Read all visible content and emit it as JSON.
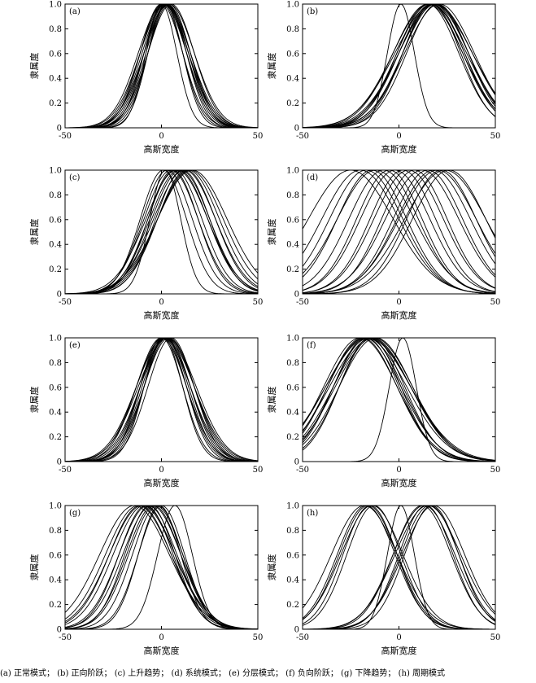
{
  "caption": [
    "(a) 正常模式；",
    "(b) 正向阶跃；",
    "(c) 上升趋势；",
    "(d) 系统模式；",
    "(e) 分层模式；",
    "(f) 负向阶跃；",
    "(g) 下降趋势；",
    "(h) 周期模式"
  ],
  "colors": {
    "line": "#000000",
    "axis": "#000000",
    "background": "#ffffff"
  },
  "chart_data": [
    {
      "type": "line",
      "panel": "(a)",
      "xlabel": "高斯宽度",
      "ylabel": "隶属度",
      "xlim": [
        -50,
        50
      ],
      "ylim": [
        0,
        1
      ],
      "xticks": [
        "-50",
        "0",
        "50"
      ],
      "yticks": [
        "0",
        "0.2",
        "0.4",
        "0.6",
        "0.8",
        "1.0"
      ],
      "series": [
        {
          "center": 0,
          "sigma": 8
        },
        {
          "center": 1,
          "sigma": 10
        },
        {
          "center": 2,
          "sigma": 11
        },
        {
          "center": 3,
          "sigma": 12
        },
        {
          "center": 1,
          "sigma": 12
        },
        {
          "center": 4,
          "sigma": 11
        },
        {
          "center": 2,
          "sigma": 13
        },
        {
          "center": 0,
          "sigma": 11
        },
        {
          "center": 3,
          "sigma": 10
        },
        {
          "center": 5,
          "sigma": 12
        },
        {
          "center": 1,
          "sigma": 13
        },
        {
          "center": 2,
          "sigma": 9
        },
        {
          "center": 4,
          "sigma": 13
        },
        {
          "center": 3,
          "sigma": 11
        },
        {
          "center": 2,
          "sigma": 12
        }
      ]
    },
    {
      "type": "line",
      "panel": "(b)",
      "xlabel": "高斯宽度",
      "ylabel": "隶属度",
      "xlim": [
        -50,
        50
      ],
      "ylim": [
        0,
        1
      ],
      "xticks": [
        "-50",
        "0",
        "50"
      ],
      "yticks": [
        "0",
        "0.2",
        "0.4",
        "0.6",
        "0.8",
        "1.0"
      ],
      "series": [
        {
          "center": 1,
          "sigma": 7
        },
        {
          "center": 15,
          "sigma": 16
        },
        {
          "center": 17,
          "sigma": 17
        },
        {
          "center": 18,
          "sigma": 18
        },
        {
          "center": 16,
          "sigma": 19
        },
        {
          "center": 19,
          "sigma": 17
        },
        {
          "center": 20,
          "sigma": 16
        },
        {
          "center": 15,
          "sigma": 18
        },
        {
          "center": 18,
          "sigma": 20
        },
        {
          "center": 17,
          "sigma": 15
        },
        {
          "center": 21,
          "sigma": 18
        },
        {
          "center": 16,
          "sigma": 17
        },
        {
          "center": 19,
          "sigma": 19
        },
        {
          "center": 18,
          "sigma": 16
        }
      ]
    },
    {
      "type": "line",
      "panel": "(c)",
      "xlabel": "高斯宽度",
      "ylabel": "隶属度",
      "xlim": [
        -50,
        50
      ],
      "ylim": [
        0,
        1
      ],
      "xticks": [
        "-50",
        "0",
        "50"
      ],
      "yticks": [
        "0",
        "0.2",
        "0.4",
        "0.6",
        "0.8",
        "1.0"
      ],
      "series": [
        {
          "center": 2,
          "sigma": 8
        },
        {
          "center": 1,
          "sigma": 12
        },
        {
          "center": 3,
          "sigma": 13
        },
        {
          "center": 5,
          "sigma": 14
        },
        {
          "center": 7,
          "sigma": 14
        },
        {
          "center": 9,
          "sigma": 15
        },
        {
          "center": 10,
          "sigma": 15
        },
        {
          "center": 12,
          "sigma": 16
        },
        {
          "center": 14,
          "sigma": 16
        },
        {
          "center": 15,
          "sigma": 17
        },
        {
          "center": 11,
          "sigma": 14
        },
        {
          "center": 8,
          "sigma": 16
        },
        {
          "center": 13,
          "sigma": 15
        },
        {
          "center": 6,
          "sigma": 13
        },
        {
          "center": 16,
          "sigma": 18
        }
      ]
    },
    {
      "type": "line",
      "panel": "(d)",
      "xlabel": "高斯宽度",
      "ylabel": "隶属度",
      "xlim": [
        -50,
        50
      ],
      "ylim": [
        0,
        1
      ],
      "xticks": [
        "-50",
        "0",
        "50"
      ],
      "yticks": [
        "0",
        "0.2",
        "0.4",
        "0.6",
        "0.8",
        "1.0"
      ],
      "series": [
        {
          "center": -25,
          "sigma": 22
        },
        {
          "center": -20,
          "sigma": 20
        },
        {
          "center": -17,
          "sigma": 19
        },
        {
          "center": -14,
          "sigma": 18
        },
        {
          "center": -12,
          "sigma": 20
        },
        {
          "center": -8,
          "sigma": 18
        },
        {
          "center": -5,
          "sigma": 17
        },
        {
          "center": -2,
          "sigma": 18
        },
        {
          "center": 2,
          "sigma": 17
        },
        {
          "center": 5,
          "sigma": 18
        },
        {
          "center": 8,
          "sigma": 17
        },
        {
          "center": 12,
          "sigma": 19
        },
        {
          "center": 15,
          "sigma": 18
        },
        {
          "center": 18,
          "sigma": 19
        },
        {
          "center": 20,
          "sigma": 20
        },
        {
          "center": 22,
          "sigma": 18
        },
        {
          "center": 24,
          "sigma": 21
        },
        {
          "center": 26,
          "sigma": 19
        }
      ]
    },
    {
      "type": "line",
      "panel": "(e)",
      "xlabel": "高斯宽度",
      "ylabel": "隶属度",
      "xlim": [
        -50,
        50
      ],
      "ylim": [
        0,
        1
      ],
      "xticks": [
        "-50",
        "0",
        "50"
      ],
      "yticks": [
        "0",
        "0.2",
        "0.4",
        "0.6",
        "0.8",
        "1.0"
      ],
      "series": [
        {
          "center": 0,
          "sigma": 11
        },
        {
          "center": 1,
          "sigma": 12
        },
        {
          "center": 2,
          "sigma": 13
        },
        {
          "center": 3,
          "sigma": 12
        },
        {
          "center": 1,
          "sigma": 14
        },
        {
          "center": 2,
          "sigma": 11
        },
        {
          "center": 4,
          "sigma": 13
        },
        {
          "center": 0,
          "sigma": 13
        },
        {
          "center": 3,
          "sigma": 14
        },
        {
          "center": 2,
          "sigma": 15
        },
        {
          "center": 1,
          "sigma": 10
        },
        {
          "center": 5,
          "sigma": 12
        },
        {
          "center": 3,
          "sigma": 15
        },
        {
          "center": 2,
          "sigma": 12
        }
      ]
    },
    {
      "type": "line",
      "panel": "(f)",
      "xlabel": "高斯宽度",
      "ylabel": "隶属度",
      "xlim": [
        -50,
        50
      ],
      "ylim": [
        0,
        1
      ],
      "xticks": [
        "-50",
        "0",
        "50"
      ],
      "yticks": [
        "0",
        "0.2",
        "0.4",
        "0.6",
        "0.8",
        "1.0"
      ],
      "series": [
        {
          "center": 2,
          "sigma": 7
        },
        {
          "center": -14,
          "sigma": 17
        },
        {
          "center": -16,
          "sigma": 18
        },
        {
          "center": -18,
          "sigma": 19
        },
        {
          "center": -13,
          "sigma": 20
        },
        {
          "center": -17,
          "sigma": 21
        },
        {
          "center": -15,
          "sigma": 16
        },
        {
          "center": -19,
          "sigma": 18
        },
        {
          "center": -12,
          "sigma": 19
        },
        {
          "center": -16,
          "sigma": 22
        },
        {
          "center": -14,
          "sigma": 20
        },
        {
          "center": -20,
          "sigma": 19
        },
        {
          "center": -15,
          "sigma": 21
        },
        {
          "center": -17,
          "sigma": 17
        }
      ]
    },
    {
      "type": "line",
      "panel": "(g)",
      "xlabel": "高斯宽度",
      "ylabel": "隶属度",
      "xlim": [
        -50,
        50
      ],
      "ylim": [
        0,
        1
      ],
      "xticks": [
        "-50",
        "0",
        "50"
      ],
      "yticks": [
        "0",
        "0.2",
        "0.4",
        "0.6",
        "0.8",
        "1.0"
      ],
      "series": [
        {
          "center": 7,
          "sigma": 9
        },
        {
          "center": 0,
          "sigma": 12
        },
        {
          "center": -2,
          "sigma": 13
        },
        {
          "center": -4,
          "sigma": 14
        },
        {
          "center": -5,
          "sigma": 15
        },
        {
          "center": -7,
          "sigma": 15
        },
        {
          "center": -9,
          "sigma": 16
        },
        {
          "center": -10,
          "sigma": 17
        },
        {
          "center": -12,
          "sigma": 17
        },
        {
          "center": -14,
          "sigma": 18
        },
        {
          "center": -6,
          "sigma": 13
        },
        {
          "center": -3,
          "sigma": 14
        },
        {
          "center": -8,
          "sigma": 14
        },
        {
          "center": -1,
          "sigma": 11
        },
        {
          "center": -11,
          "sigma": 16
        }
      ]
    },
    {
      "type": "line",
      "panel": "(h)",
      "xlabel": "高斯宽度",
      "ylabel": "隶属度",
      "xlim": [
        -50,
        50
      ],
      "ylim": [
        0,
        1
      ],
      "xticks": [
        "-50",
        "0",
        "50"
      ],
      "yticks": [
        "0",
        "0.2",
        "0.4",
        "0.6",
        "0.8",
        "1.0"
      ],
      "series": [
        {
          "center": 1,
          "sigma": 7
        },
        {
          "center": -15,
          "sigma": 14
        },
        {
          "center": -17,
          "sigma": 15
        },
        {
          "center": -14,
          "sigma": 16
        },
        {
          "center": -18,
          "sigma": 17
        },
        {
          "center": -16,
          "sigma": 15
        },
        {
          "center": -13,
          "sigma": 14
        },
        {
          "center": 14,
          "sigma": 14
        },
        {
          "center": 16,
          "sigma": 15
        },
        {
          "center": 13,
          "sigma": 16
        },
        {
          "center": 17,
          "sigma": 14
        },
        {
          "center": 15,
          "sigma": 17
        },
        {
          "center": 12,
          "sigma": 15
        },
        {
          "center": 18,
          "sigma": 16
        }
      ]
    }
  ]
}
